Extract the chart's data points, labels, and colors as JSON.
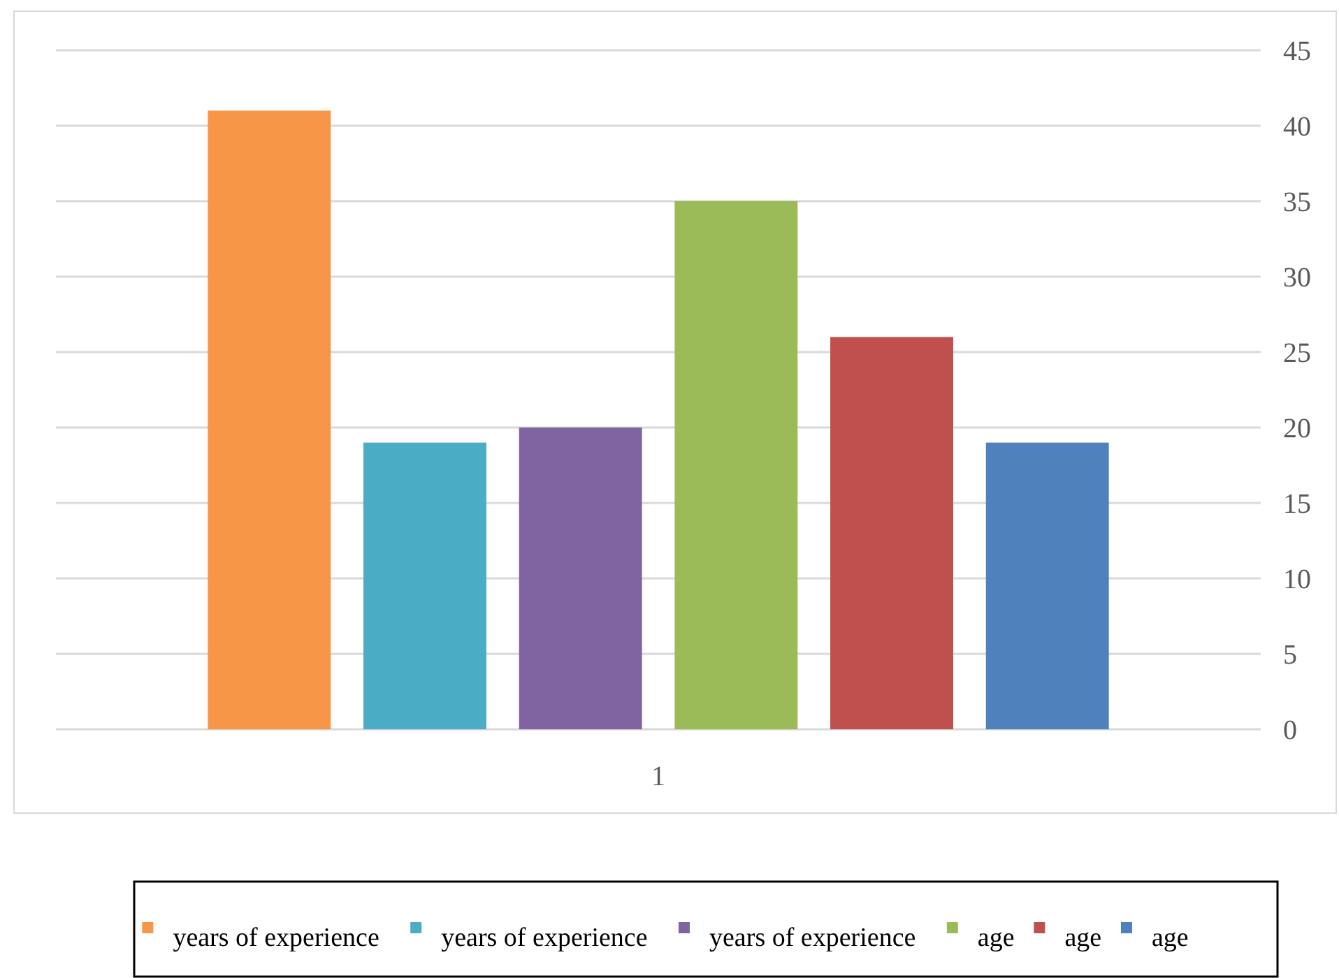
{
  "chart_data": {
    "type": "bar",
    "categories": [
      "1"
    ],
    "series": [
      {
        "name": "years of experience",
        "color": "#f79646",
        "values": [
          41
        ]
      },
      {
        "name": "years of experience",
        "color": "#4bacc6",
        "values": [
          19
        ]
      },
      {
        "name": "years of experience",
        "color": "#8064a2",
        "values": [
          20
        ]
      },
      {
        "name": "age",
        "color": "#9bbb59",
        "values": [
          35
        ]
      },
      {
        "name": "age",
        "color": "#c0504d",
        "values": [
          26
        ]
      },
      {
        "name": "age",
        "color": "#4f81bd",
        "values": [
          19
        ]
      }
    ],
    "ylim": [
      0,
      45
    ],
    "yticks": [
      0,
      5,
      10,
      15,
      20,
      25,
      30,
      35,
      40,
      45
    ],
    "grid": "y",
    "legend": "bottom"
  }
}
